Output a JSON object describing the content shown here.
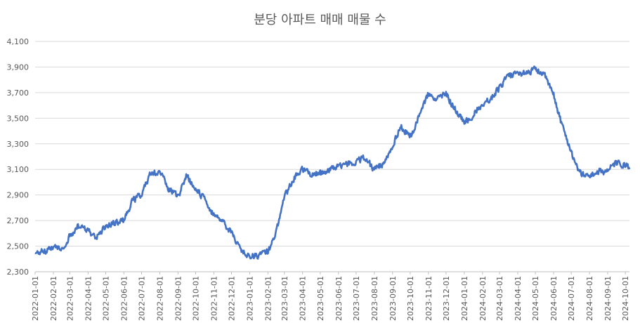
{
  "chart_data": {
    "type": "line",
    "title": "분당 아파트 매매 매물 수",
    "xlabel": "",
    "ylabel": "",
    "ylim": [
      2300,
      4100
    ],
    "yticks": [
      2300,
      2500,
      2700,
      2900,
      3100,
      3300,
      3500,
      3700,
      3900,
      4100
    ],
    "ytick_labels": [
      "2,300",
      "2,500",
      "2,700",
      "2,900",
      "3,100",
      "3,300",
      "3,500",
      "3,700",
      "3,900",
      "4,100"
    ],
    "xtick_labels": [
      "2022-01-01",
      "2022-02-01",
      "2022-03-01",
      "2022-04-01",
      "2022-05-01",
      "2022-06-01",
      "2022-07-01",
      "2022-08-01",
      "2022-09-01",
      "2022-10-01",
      "2022-11-01",
      "2022-12-01",
      "2023-01-01",
      "2023-02-01",
      "2023-03-01",
      "2023-04-01",
      "2023-05-01",
      "2023-06-01",
      "2023-07-01",
      "2023-08-01",
      "2023-09-01",
      "2023-10-01",
      "2023-11-01",
      "2023-12-01",
      "2024-01-01",
      "2024-02-01",
      "2024-03-01",
      "2024-04-01",
      "2024-05-01",
      "2024-06-01",
      "2024-07-01",
      "2024-08-01",
      "2024-09-01",
      "2024-10-01"
    ],
    "grid": true,
    "legend": "none",
    "color": "#4472C4",
    "series": [
      {
        "x": [
          "2022-01-01",
          "2022-01-15",
          "2022-02-01",
          "2022-02-15",
          "2022-03-01",
          "2022-03-15",
          "2022-04-01",
          "2022-04-15",
          "2022-05-01",
          "2022-05-15",
          "2022-06-01",
          "2022-06-15",
          "2022-07-01",
          "2022-07-15",
          "2022-08-01",
          "2022-08-15",
          "2022-09-01",
          "2022-09-15",
          "2022-10-01",
          "2022-10-15",
          "2022-11-01",
          "2022-11-15",
          "2022-12-01",
          "2022-12-15",
          "2023-01-01",
          "2023-01-15",
          "2023-02-01",
          "2023-02-15",
          "2023-03-01",
          "2023-03-15",
          "2023-04-01",
          "2023-04-15",
          "2023-05-01",
          "2023-05-15",
          "2023-06-01",
          "2023-06-15",
          "2023-07-01",
          "2023-07-15",
          "2023-08-01",
          "2023-08-15",
          "2023-09-01",
          "2023-09-15",
          "2023-10-01",
          "2023-10-15",
          "2023-11-01",
          "2023-11-15",
          "2023-12-01",
          "2023-12-15",
          "2024-01-01",
          "2024-01-15",
          "2024-02-01",
          "2024-02-15",
          "2024-03-01",
          "2024-03-15",
          "2024-04-01",
          "2024-04-15",
          "2024-05-01",
          "2024-05-15",
          "2024-06-01",
          "2024-06-15",
          "2024-07-01",
          "2024-07-15",
          "2024-08-01",
          "2024-08-15",
          "2024-09-01",
          "2024-09-15",
          "2024-10-01",
          "2024-10-08"
        ],
        "values": [
          2440,
          2460,
          2490,
          2470,
          2580,
          2660,
          2620,
          2570,
          2650,
          2680,
          2700,
          2850,
          2900,
          3060,
          3080,
          2960,
          2880,
          3050,
          2960,
          2870,
          2740,
          2700,
          2600,
          2490,
          2420,
          2430,
          2450,
          2620,
          2880,
          3020,
          3100,
          3060,
          3070,
          3090,
          3120,
          3140,
          3160,
          3190,
          3100,
          3140,
          3280,
          3440,
          3350,
          3500,
          3700,
          3640,
          3690,
          3580,
          3460,
          3520,
          3620,
          3650,
          3740,
          3830,
          3840,
          3860,
          3880,
          3850,
          3680,
          3450,
          3240,
          3070,
          3050,
          3080,
          3090,
          3150,
          3130,
          3110
        ]
      }
    ]
  }
}
